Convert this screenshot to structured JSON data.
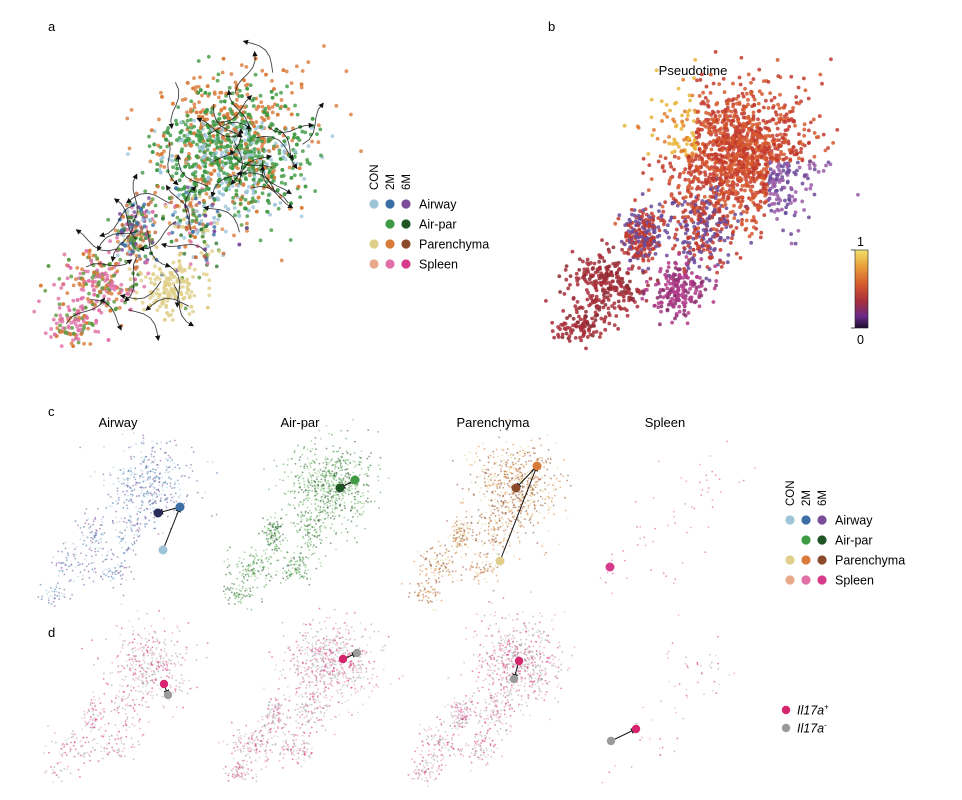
{
  "panels": {
    "a": "a",
    "b": "b",
    "c": "c",
    "d": "d"
  },
  "panel_b_title": "Pseudotime",
  "colorbar": {
    "max_label": "1",
    "min_label": "0",
    "stops": [
      "#f2e06a",
      "#e9a23a",
      "#d6582e",
      "#a82e3a",
      "#6a2a86",
      "#1b0b2d"
    ]
  },
  "legend_ab": {
    "headers": [
      "CON",
      "2M",
      "6M"
    ],
    "rows": [
      {
        "label": "Airway",
        "colors": [
          "#9ec4d8",
          "#3a6ea5",
          "#7a4c9a"
        ]
      },
      {
        "label": "Air-par",
        "colors": [
          null,
          "#3f9a44",
          "#1f5424"
        ]
      },
      {
        "label": "Parenchyma",
        "colors": [
          "#e0cf8a",
          "#d97b3a",
          "#8b4a2a"
        ]
      },
      {
        "label": "Spleen",
        "colors": [
          "#e9a98b",
          "#e070a6",
          "#d63a8a"
        ]
      }
    ]
  },
  "legend_c": {
    "headers": [
      "CON",
      "2M",
      "6M"
    ],
    "rows": [
      {
        "label": "Airway",
        "colors": [
          "#9ec4d8",
          "#3a6ea5",
          "#7a4c9a"
        ]
      },
      {
        "label": "Air-par",
        "colors": [
          null,
          "#3f9a44",
          "#1f5424"
        ]
      },
      {
        "label": "Parenchyma",
        "colors": [
          "#e0cf8a",
          "#d97b3a",
          "#8b4a2a"
        ]
      },
      {
        "label": "Spleen",
        "colors": [
          "#e9a98b",
          "#e070a6",
          "#d63a8a"
        ]
      }
    ]
  },
  "legend_d": {
    "items": [
      {
        "gene": "Il17a",
        "sign": "+",
        "color": "#d6246e"
      },
      {
        "gene": "Il17a",
        "sign": "-",
        "color": "#9a9a9a"
      }
    ]
  },
  "chart_data": [
    {
      "type": "scatter",
      "panel": "a",
      "title": "",
      "description_label": "UMAP with RNA velocity streamlines",
      "categories": [
        "Airway",
        "Air-par",
        "Parenchyma",
        "Spleen"
      ],
      "timepoints": [
        "CON",
        "2M",
        "6M"
      ]
    },
    {
      "type": "scatter",
      "panel": "b",
      "title": "Pseudotime",
      "color_scale": {
        "min": 0,
        "max": 1
      }
    },
    {
      "type": "scatter",
      "panel": "c",
      "facets": [
        {
          "title": "Airway",
          "trajectory": [
            "CON",
            "2M",
            "6M"
          ]
        },
        {
          "title": "Air-par",
          "trajectory": [
            "2M",
            "6M"
          ]
        },
        {
          "title": "Parenchyma",
          "trajectory": [
            "CON",
            "2M",
            "6M"
          ]
        },
        {
          "title": "Spleen",
          "trajectory": [
            "6M"
          ]
        }
      ]
    },
    {
      "type": "scatter",
      "panel": "d",
      "facets": [
        {
          "title": "Airway",
          "arrow": [
            "Il17a+",
            "Il17a-"
          ]
        },
        {
          "title": "Air-par",
          "arrow": [
            "Il17a+",
            "Il17a-"
          ]
        },
        {
          "title": "Parenchyma",
          "arrow": [
            "Il17a+",
            "Il17a-"
          ]
        },
        {
          "title": "Spleen",
          "arrow": [
            "Il17a-",
            "Il17a+"
          ]
        }
      ]
    }
  ],
  "facet_titles": [
    "Airway",
    "Air-par",
    "Parenchyma",
    "Spleen"
  ]
}
